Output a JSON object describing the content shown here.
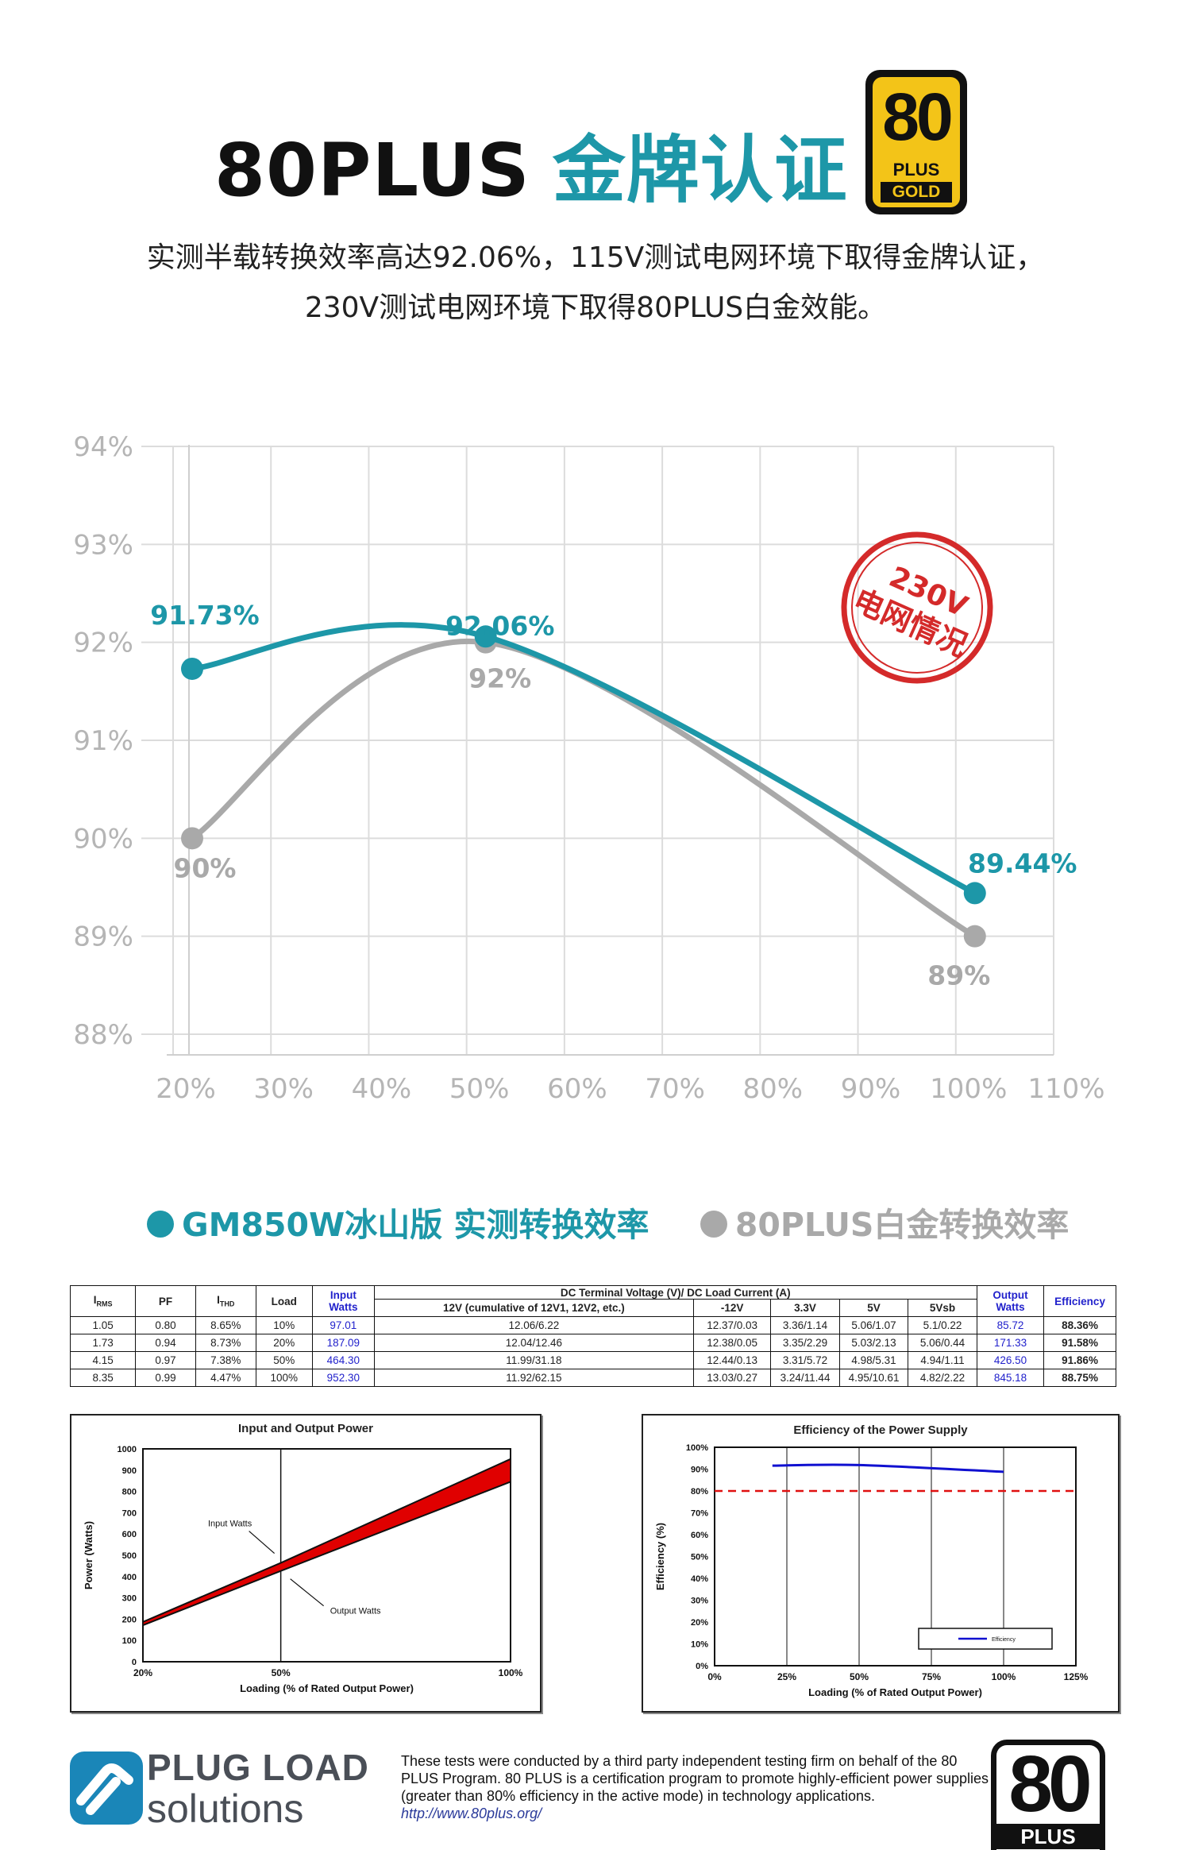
{
  "header": {
    "title_part1": "80PLUS",
    "title_part2": "金牌认证",
    "subtitle_line1": "实测半载转换效率高达92.06%，115V测试电网环境下取得金牌认证，",
    "subtitle_line2": "230V测试电网环境下取得80PLUS白金效能。",
    "badge": {
      "number": "80",
      "plus": "PLUS",
      "tier": "GOLD",
      "color": "#f3c418"
    }
  },
  "stamp": {
    "line1": "230V",
    "line2": "电网情况",
    "color": "#d42a2a"
  },
  "chart_data": [
    {
      "type": "line",
      "x_tick_labels": [
        "20%",
        "30%",
        "40%",
        "50%",
        "60%",
        "70%",
        "80%",
        "90%",
        "100%",
        "110%"
      ],
      "y_tick_labels": [
        "94%",
        "93%",
        "92%",
        "91%",
        "90%",
        "89%",
        "88%"
      ],
      "xlim": [
        20,
        110
      ],
      "ylim": [
        88,
        94
      ],
      "grid": true,
      "series": [
        {
          "name": "GM850W冰山版 实测转换效率",
          "color": "#1d97a8",
          "x": [
            20,
            50,
            100
          ],
          "y": [
            91.73,
            92.06,
            89.44
          ],
          "labels": [
            "91.73%",
            "92.06%",
            "89.44%"
          ]
        },
        {
          "name": "80PLUS白金转换效率",
          "color": "#a9a9a9",
          "x": [
            20,
            50,
            100
          ],
          "y": [
            90,
            92,
            89
          ],
          "labels": [
            "90%",
            "92%",
            "89%"
          ]
        }
      ]
    },
    {
      "type": "area",
      "title": "Input and Output Power",
      "xlabel": "Loading (% of Rated Output Power)",
      "ylabel": "Power (Watts)",
      "x_tick_labels": [
        "20%",
        "50%",
        "100%"
      ],
      "y_tick_labels": [
        "1000",
        "900",
        "800",
        "700",
        "600",
        "500",
        "400",
        "300",
        "200",
        "100",
        "0"
      ],
      "xlim": [
        20,
        100
      ],
      "ylim": [
        0,
        1000
      ],
      "series": [
        {
          "name": "Input Watts",
          "x": [
            20,
            50,
            100
          ],
          "y": [
            187.09,
            464.3,
            952.3
          ]
        },
        {
          "name": "Output Watts",
          "x": [
            20,
            50,
            100
          ],
          "y": [
            171.33,
            426.5,
            845.18
          ]
        }
      ],
      "annotations": [
        "Input Watts",
        "Output Watts"
      ],
      "fill_color": "#e00000"
    },
    {
      "type": "line",
      "title": "Efficiency of the Power Supply",
      "xlabel": "Loading (% of Rated Output Power)",
      "ylabel": "Efficiency (%)",
      "x_tick_labels": [
        "0%",
        "25%",
        "50%",
        "75%",
        "100%",
        "125%"
      ],
      "y_tick_labels": [
        "100%",
        "90%",
        "80%",
        "70%",
        "60%",
        "50%",
        "40%",
        "30%",
        "20%",
        "10%",
        "0%"
      ],
      "xlim": [
        0,
        125
      ],
      "ylim": [
        0,
        100
      ],
      "grid": true,
      "reference_line": 80,
      "series": [
        {
          "name": "Efficiency",
          "color": "#1010d0",
          "x": [
            20,
            50,
            100
          ],
          "y": [
            91.58,
            91.86,
            88.75
          ]
        }
      ],
      "legend": "bottom-right"
    }
  ],
  "legend": {
    "item1": "GM850W冰山版 实测转换效率",
    "item2": "80PLUS白金转换效率",
    "color1": "#1d97a8",
    "color2": "#a9a9a9"
  },
  "table": {
    "headers": {
      "irms": "I",
      "irms_sub": "RMS",
      "pf": "PF",
      "ithd": "I",
      "ithd_sub": "THD",
      "load": "Load",
      "input_watts": "Input Watts",
      "dc_title": "DC Terminal Voltage (V)/ DC Load Current (A)",
      "rail12": "12V (cumulative of 12V1, 12V2, etc.)",
      "rail_m12": "-12V",
      "rail33": "3.3V",
      "rail5": "5V",
      "rail5vsb": "5Vsb",
      "output_watts": "Output Watts",
      "efficiency": "Efficiency"
    },
    "rows": [
      [
        "1.05",
        "0.80",
        "8.65%",
        "10%",
        "97.01",
        "12.06/6.22",
        "12.37/0.03",
        "3.36/1.14",
        "5.06/1.07",
        "5.1/0.22",
        "85.72",
        "88.36%"
      ],
      [
        "1.73",
        "0.94",
        "8.73%",
        "20%",
        "187.09",
        "12.04/12.46",
        "12.38/0.05",
        "3.35/2.29",
        "5.03/2.13",
        "5.06/0.44",
        "171.33",
        "91.58%"
      ],
      [
        "4.15",
        "0.97",
        "7.38%",
        "50%",
        "464.30",
        "11.99/31.18",
        "12.44/0.13",
        "3.31/5.72",
        "4.98/5.31",
        "4.94/1.11",
        "426.50",
        "91.86%"
      ],
      [
        "8.35",
        "0.99",
        "4.47%",
        "100%",
        "952.30",
        "11.92/62.15",
        "13.03/0.27",
        "3.24/11.44",
        "4.95/10.61",
        "4.82/2.22",
        "845.18",
        "88.75%"
      ]
    ]
  },
  "footer": {
    "logo_line1": "PLUG LOAD",
    "logo_line2": "solutions",
    "logo_color": "#1a86b8",
    "note": "These tests were conducted by a third party independent testing firm on behalf of the 80 PLUS Program. 80 PLUS is a certification program to promote highly-efficient power supplies (greater than 80% efficiency in the active mode) in technology applications.",
    "url": "http://www.80plus.org/",
    "badge_number": "80",
    "badge_plus": "PLUS"
  }
}
